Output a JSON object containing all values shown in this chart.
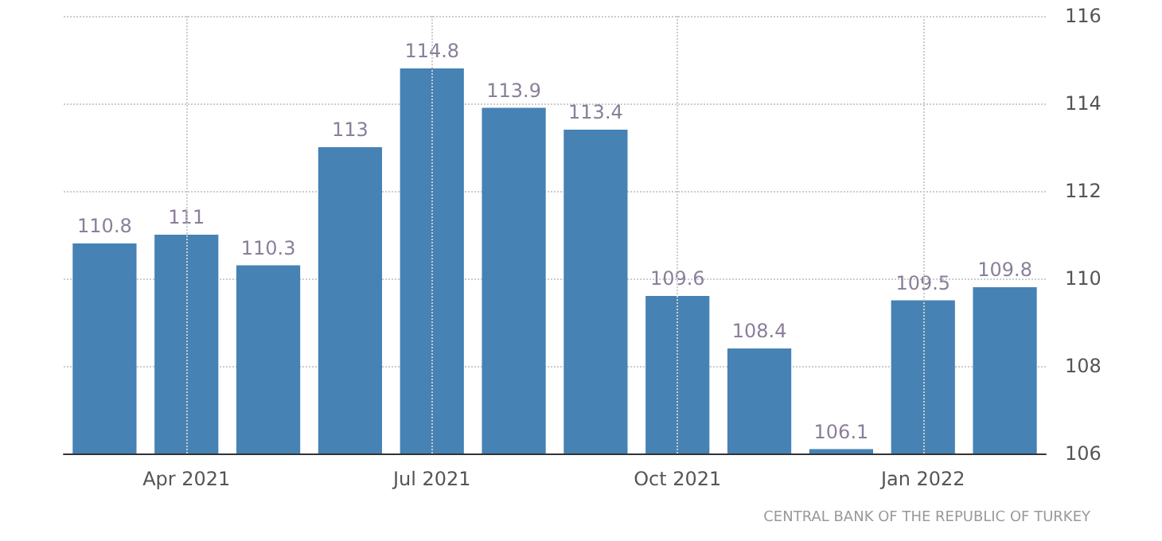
{
  "chart_data": {
    "type": "bar",
    "categories": [
      null,
      "Apr 2021",
      null,
      null,
      "Jul 2021",
      null,
      null,
      "Oct 2021",
      null,
      null,
      "Jan 2022",
      null
    ],
    "values": [
      110.8,
      111,
      110.3,
      113,
      114.8,
      113.9,
      113.4,
      109.6,
      108.4,
      106.1,
      109.5,
      109.8
    ],
    "color": "#4682b4",
    "ylim": [
      106,
      116
    ],
    "yticks": [
      106,
      108,
      110,
      112,
      114,
      116
    ],
    "grid": true,
    "data_labels": true,
    "annotations": [
      "CENTRAL BANK OF THE REPUBLIC OF TURKEY"
    ]
  }
}
